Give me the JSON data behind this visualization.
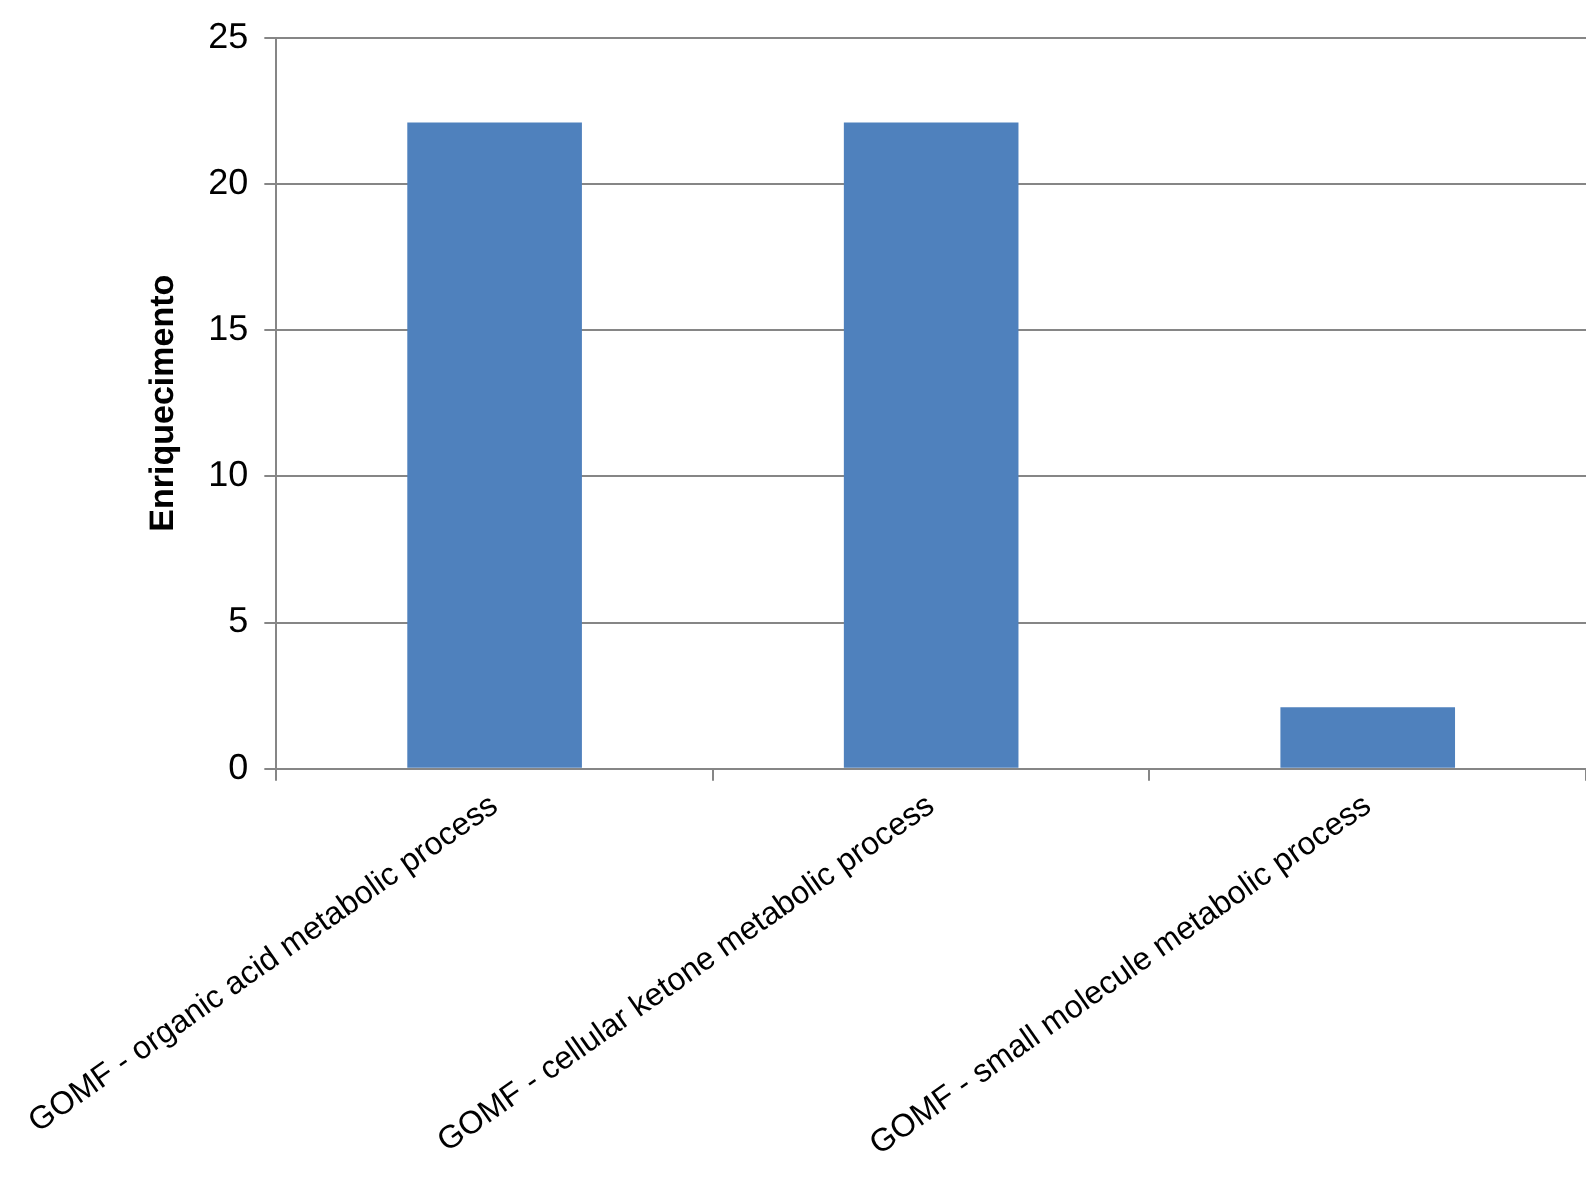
{
  "chart_data": {
    "type": "bar",
    "ylabel": "Enriquecimento",
    "categories": [
      "GOMF - organic acid metabolic process",
      "GOMF - cellular ketone metabolic process",
      "GOMF - small molecule metabolic process"
    ],
    "values": [
      22.1,
      22.1,
      2.1
    ],
    "color": "#4f81bd",
    "ylim": [
      0,
      25
    ],
    "yticks": [
      0,
      5,
      10,
      15,
      20,
      25
    ],
    "grid": "y",
    "legend": false
  }
}
